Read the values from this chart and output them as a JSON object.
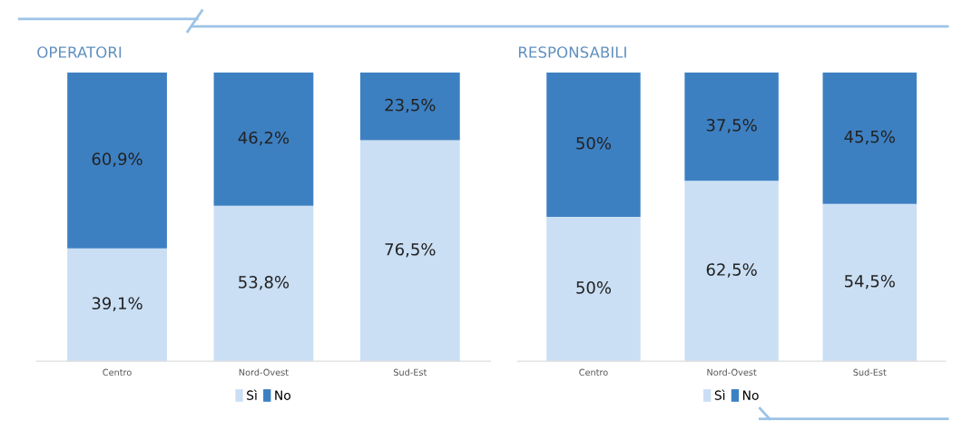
{
  "chart_data": [
    {
      "type": "bar",
      "title": "OPERATORI",
      "categories": [
        "Centro",
        "Nord-Ovest",
        "Sud-Est"
      ],
      "stacked": true,
      "ylim": [
        0,
        100
      ],
      "tick_labels": "x",
      "grid": false,
      "legend": "bottom",
      "series": [
        {
          "name": "Sì",
          "color": "#cadff4",
          "values": [
            39.1,
            53.8,
            76.5
          ],
          "value_labels": [
            "39,1%",
            "53,8%",
            "76,5%"
          ]
        },
        {
          "name": "No",
          "color": "#3d80c2",
          "values": [
            60.9,
            46.2,
            23.5
          ],
          "value_labels": [
            "60,9%",
            "46,2%",
            "23,5%"
          ]
        }
      ]
    },
    {
      "type": "bar",
      "title": "RESPONSABILI",
      "categories": [
        "Centro",
        "Nord-Ovest",
        "Sud-Est"
      ],
      "stacked": true,
      "ylim": [
        0,
        100
      ],
      "tick_labels": "x",
      "grid": false,
      "legend": "bottom",
      "series": [
        {
          "name": "Sì",
          "color": "#cadff4",
          "values": [
            50,
            62.5,
            54.5
          ],
          "value_labels": [
            "50%",
            "62,5%",
            "54,5%"
          ]
        },
        {
          "name": "No",
          "color": "#3d80c2",
          "values": [
            50,
            37.5,
            45.5
          ],
          "value_labels": [
            "50%",
            "37,5%",
            "45,5%"
          ]
        }
      ]
    }
  ]
}
